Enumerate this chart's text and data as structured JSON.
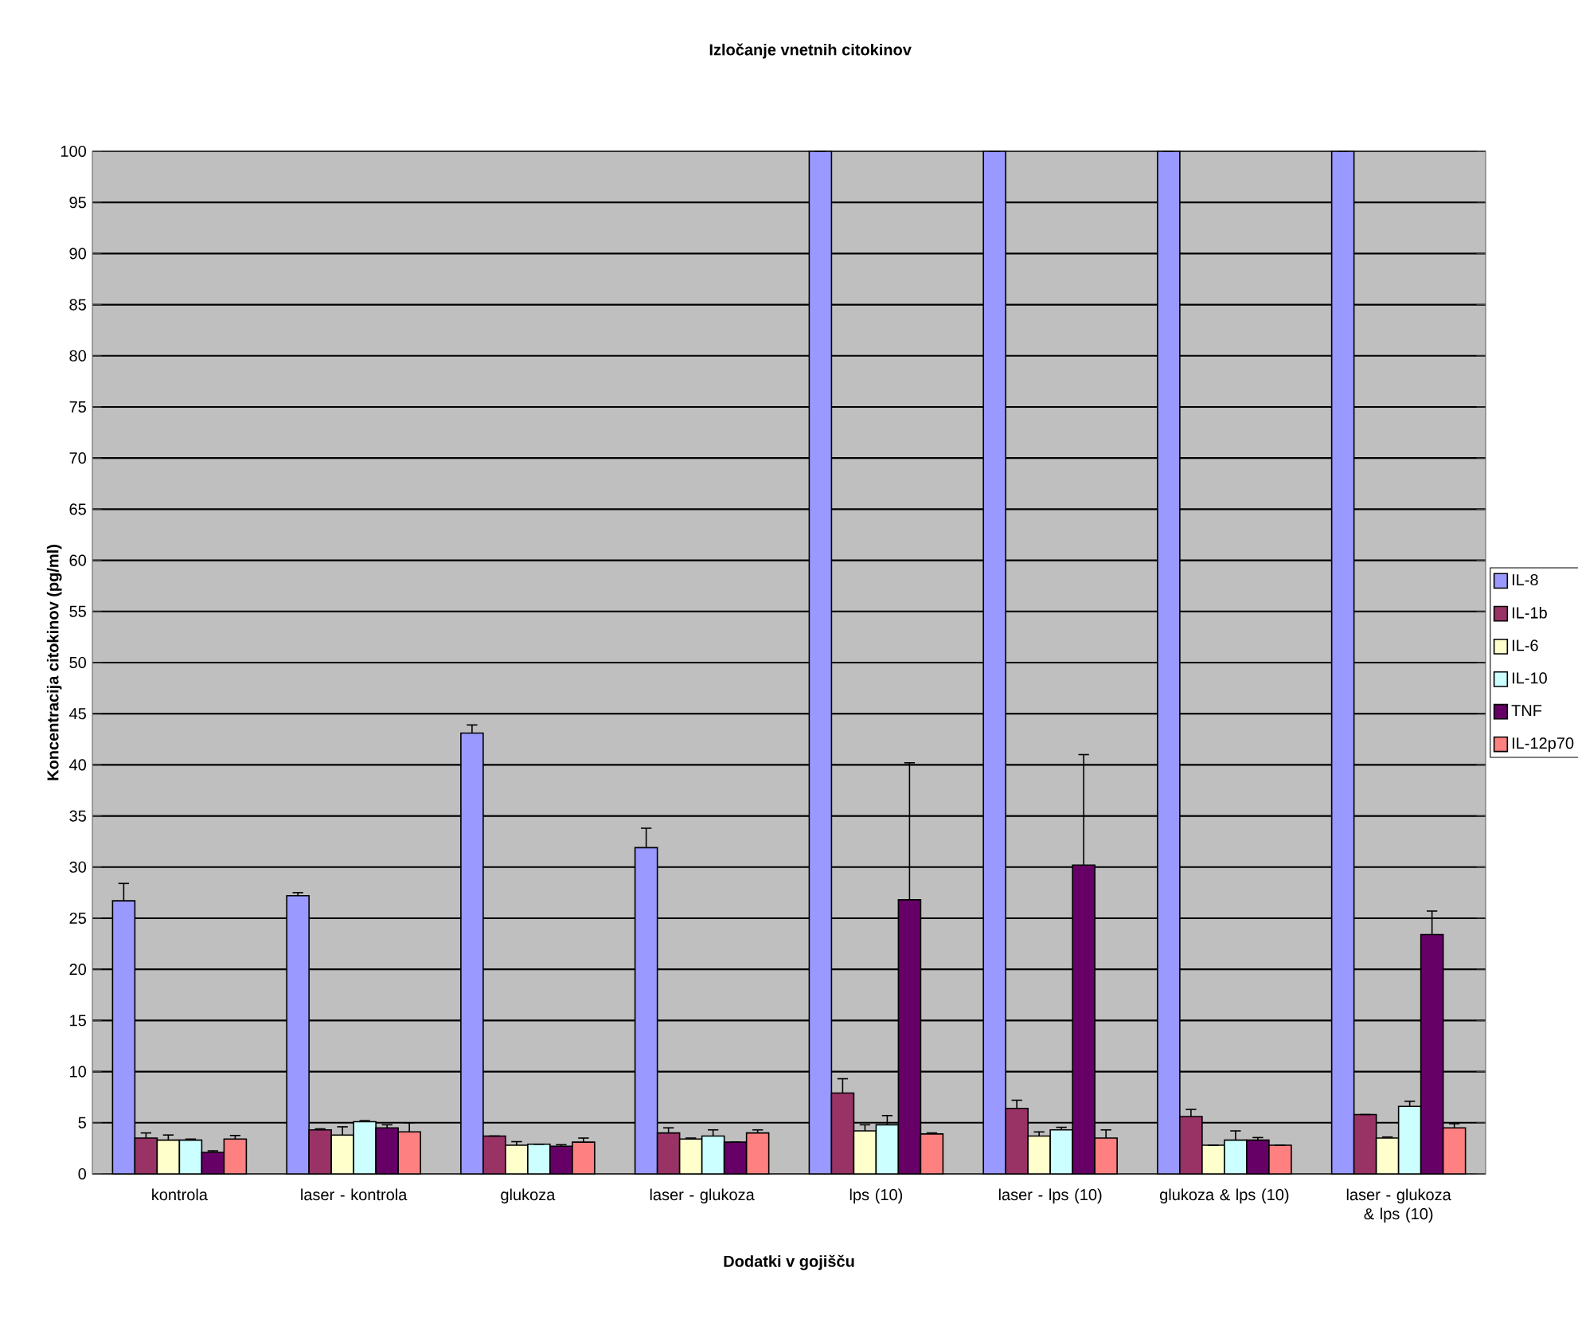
{
  "chart_data": {
    "type": "bar",
    "title": "Izločanje vnetnih citokinov",
    "xlabel": "Dodatki v gojišču",
    "ylabel": "Koncentracija citokinov (pg/ml)",
    "categories": [
      "kontrola",
      "laser - kontrola",
      "glukoza",
      "laser - glukoza",
      "lps (10)",
      "laser - lps (10)",
      "glukoza & lps (10)",
      "laser - glukoza & lps (10)"
    ],
    "series": [
      {
        "name": "IL-8",
        "color": "#9999ff",
        "values": [
          26.7,
          27.2,
          43.1,
          31.9,
          100,
          100,
          100,
          100
        ],
        "errors": [
          1.7,
          0.3,
          0.8,
          1.9,
          null,
          null,
          null,
          null
        ]
      },
      {
        "name": "IL-1b",
        "color": "#993366",
        "values": [
          3.5,
          4.3,
          3.7,
          4.0,
          7.9,
          6.4,
          5.6,
          5.8
        ],
        "errors": [
          0.5,
          0.1,
          null,
          0.5,
          1.4,
          0.8,
          0.7,
          null
        ]
      },
      {
        "name": "IL-6",
        "color": "#ffffcc",
        "values": [
          3.3,
          3.8,
          2.8,
          3.4,
          4.2,
          3.7,
          2.8,
          3.5
        ],
        "errors": [
          0.5,
          0.8,
          0.35,
          0.1,
          0.6,
          0.4,
          null,
          0.1
        ]
      },
      {
        "name": "IL-10",
        "color": "#ccffff",
        "values": [
          3.3,
          5.1,
          2.9,
          3.7,
          4.8,
          4.3,
          3.3,
          6.6
        ],
        "errors": [
          0.1,
          0.1,
          null,
          0.6,
          0.9,
          0.25,
          0.9,
          0.5
        ]
      },
      {
        "name": "TNF",
        "color": "#660066",
        "values": [
          2.1,
          4.5,
          2.7,
          3.1,
          26.8,
          30.2,
          3.3,
          23.4
        ],
        "errors": [
          0.15,
          0.3,
          0.15,
          null,
          13.4,
          10.8,
          0.25,
          2.3
        ]
      },
      {
        "name": "IL-12p70",
        "color": "#ff8080",
        "values": [
          3.4,
          4.1,
          3.1,
          4.0,
          3.9,
          3.5,
          2.8,
          4.5
        ],
        "errors": [
          0.35,
          0.9,
          0.4,
          0.3,
          0.1,
          0.8,
          null,
          0.4
        ]
      }
    ],
    "ylim": [
      0,
      100
    ],
    "yticks": [
      0,
      5,
      10,
      15,
      20,
      25,
      30,
      35,
      40,
      45,
      50,
      55,
      60,
      65,
      70,
      75,
      80,
      85,
      90,
      95,
      100
    ],
    "grid": "y",
    "legend": "right"
  }
}
